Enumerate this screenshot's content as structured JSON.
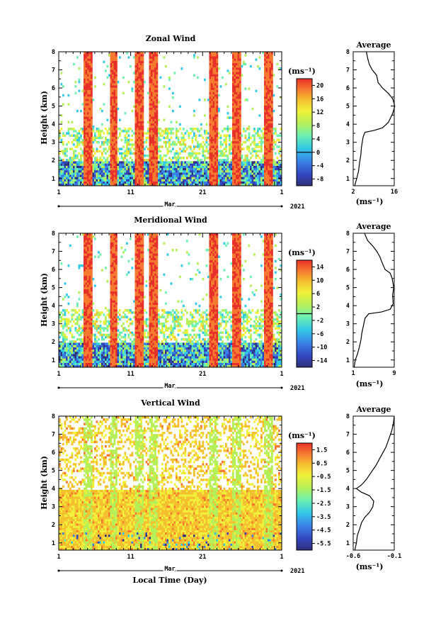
{
  "chart_data": [
    {
      "type": "heatmap",
      "title": "Zonal Wind",
      "ylabel": "Height (km)",
      "xlabel": "",
      "x_ticks": [
        "1",
        "11",
        "21",
        "1"
      ],
      "month_label": "Mar",
      "year_label": "2021",
      "y_ticks": [
        "1",
        "2",
        "3",
        "4",
        "5",
        "6",
        "7",
        "8"
      ],
      "ylim": [
        0.6,
        8
      ],
      "colorbar": {
        "unit": "(ms⁻¹)",
        "ticks": [
          "20",
          "16",
          "12",
          "8",
          "4",
          "0",
          "-4",
          "-8"
        ],
        "range": [
          -10,
          22
        ],
        "zero_line": 0
      },
      "profile": {
        "title": "Average",
        "xlabel": "(ms⁻¹)",
        "x_ticks": [
          "2",
          "16"
        ],
        "xlim": [
          2,
          16
        ],
        "points": [
          [
            2.5,
            0.6
          ],
          [
            3.2,
            1.0
          ],
          [
            3.8,
            1.4
          ],
          [
            4.2,
            1.9
          ],
          [
            4.6,
            2.3
          ],
          [
            4.8,
            2.7
          ],
          [
            5.1,
            3.0
          ],
          [
            5.4,
            3.3
          ],
          [
            6.0,
            3.55
          ],
          [
            9.0,
            3.65
          ],
          [
            12.0,
            3.8
          ],
          [
            14.0,
            4.1
          ],
          [
            15.5,
            4.6
          ],
          [
            16.2,
            5.0
          ],
          [
            15.5,
            5.4
          ],
          [
            14.0,
            5.7
          ],
          [
            12.0,
            6.0
          ],
          [
            10.5,
            6.3
          ],
          [
            10.0,
            6.7
          ],
          [
            8.5,
            7.0
          ],
          [
            7.5,
            7.3
          ],
          [
            7.0,
            7.6
          ],
          [
            6.5,
            8.0
          ]
        ]
      }
    },
    {
      "type": "heatmap",
      "title": "Meridional Wind",
      "ylabel": "Height (km)",
      "xlabel": "",
      "x_ticks": [
        "1",
        "11",
        "21",
        "1"
      ],
      "month_label": "Mar",
      "year_label": "2021",
      "y_ticks": [
        "1",
        "2",
        "3",
        "4",
        "5",
        "6",
        "7",
        "8"
      ],
      "ylim": [
        0.6,
        8
      ],
      "colorbar": {
        "unit": "(ms⁻¹)",
        "ticks": [
          "14",
          "10",
          "6",
          "2",
          "-2",
          "-6",
          "-10",
          "-14"
        ],
        "range": [
          -16,
          16
        ],
        "zero_line": 0
      },
      "profile": {
        "title": "Average",
        "xlabel": "(ms⁻¹)",
        "x_ticks": [
          "1",
          "9"
        ],
        "xlim": [
          1,
          9
        ],
        "points": [
          [
            1.2,
            0.6
          ],
          [
            1.4,
            1.0
          ],
          [
            1.8,
            1.3
          ],
          [
            2.2,
            1.7
          ],
          [
            2.5,
            2.1
          ],
          [
            2.7,
            2.5
          ],
          [
            3.0,
            2.9
          ],
          [
            3.3,
            3.3
          ],
          [
            4.0,
            3.55
          ],
          [
            6.5,
            3.65
          ],
          [
            8.2,
            3.8
          ],
          [
            8.8,
            4.1
          ],
          [
            8.7,
            4.6
          ],
          [
            8.9,
            5.0
          ],
          [
            8.6,
            5.5
          ],
          [
            8.2,
            5.8
          ],
          [
            7.2,
            6.0
          ],
          [
            6.6,
            6.4
          ],
          [
            6.2,
            6.7
          ],
          [
            5.6,
            7.0
          ],
          [
            4.8,
            7.3
          ],
          [
            3.8,
            7.6
          ],
          [
            3.2,
            8.0
          ]
        ]
      }
    },
    {
      "type": "heatmap",
      "title": "Vertical Wind",
      "ylabel": "Height (km)",
      "xlabel": "Local Time (Day)",
      "x_ticks": [
        "1",
        "11",
        "21",
        "1"
      ],
      "month_label": "Mar",
      "year_label": "2021",
      "y_ticks": [
        "1",
        "2",
        "3",
        "4",
        "5",
        "6",
        "7",
        "8"
      ],
      "ylim": [
        0.6,
        8
      ],
      "colorbar": {
        "unit": "(ms⁻¹)",
        "ticks": [
          "1.5",
          "0.5",
          "-0.5",
          "-1.5",
          "-2.5",
          "-3.5",
          "-4.5",
          "-5.5"
        ],
        "range": [
          -6,
          2
        ]
      },
      "profile": {
        "title": "Average",
        "xlabel": "(ms⁻¹)",
        "x_ticks": [
          "-0.6",
          "-0.1"
        ],
        "xlim": [
          -0.6,
          -0.1
        ],
        "points": [
          [
            -0.58,
            0.6
          ],
          [
            -0.56,
            1.0
          ],
          [
            -0.55,
            1.4
          ],
          [
            -0.52,
            1.8
          ],
          [
            -0.5,
            2.1
          ],
          [
            -0.46,
            2.4
          ],
          [
            -0.4,
            2.7
          ],
          [
            -0.36,
            3.0
          ],
          [
            -0.35,
            3.3
          ],
          [
            -0.4,
            3.6
          ],
          [
            -0.5,
            3.8
          ],
          [
            -0.56,
            4.0
          ],
          [
            -0.5,
            4.2
          ],
          [
            -0.44,
            4.5
          ],
          [
            -0.38,
            4.9
          ],
          [
            -0.32,
            5.3
          ],
          [
            -0.26,
            5.8
          ],
          [
            -0.2,
            6.3
          ],
          [
            -0.16,
            6.8
          ],
          [
            -0.13,
            7.2
          ],
          [
            -0.11,
            7.6
          ],
          [
            -0.1,
            8.0
          ]
        ]
      }
    }
  ]
}
